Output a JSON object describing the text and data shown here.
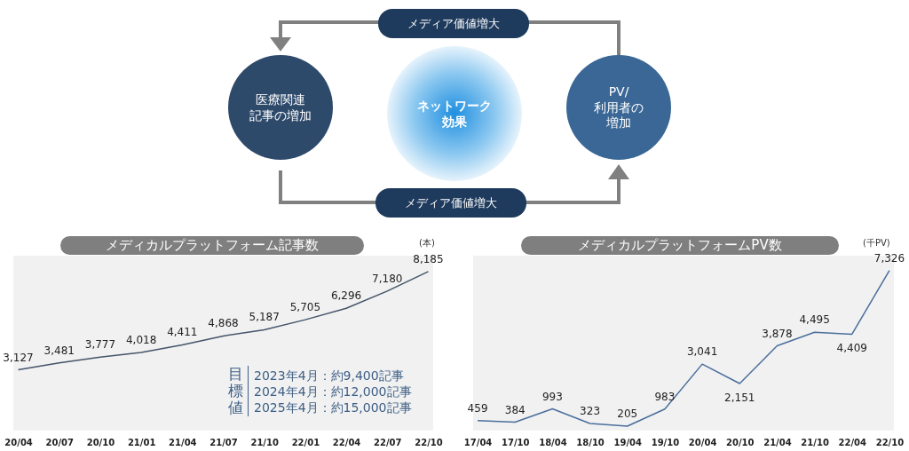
{
  "chart_data": [
    {
      "type": "other",
      "annotations": [
        "メディア価値増大",
        "医療関連記事の増加",
        "ネットワーク効果",
        "PV/利用者の増加",
        "メディア価値増大"
      ]
    },
    {
      "type": "line",
      "title": "メディカルプラットフォーム記事数",
      "ylabel": "(本)",
      "categories": [
        "20/04",
        "20/07",
        "20/10",
        "21/01",
        "21/04",
        "21/07",
        "21/10",
        "22/01",
        "22/04",
        "22/07",
        "22/10"
      ],
      "series": [
        {
          "color": "#44546a",
          "values": [
            3127,
            3481,
            3777,
            4018,
            4411,
            4868,
            5187,
            5705,
            6296,
            7180,
            8185
          ],
          "value_labels": [
            "3,127",
            "3,481",
            "3,777",
            "4,018",
            "4,411",
            "4,868",
            "5,187",
            "5,705",
            "6,296",
            "7,180",
            "8,185"
          ]
        }
      ],
      "annotations": [
        "目標値",
        "2023年4月：約9,400記事",
        "2024年4月：約12,000記事",
        "2025年4月：約15,000記事"
      ]
    },
    {
      "type": "line",
      "title": "メディカルプラットフォームPV数",
      "ylabel": "(千PV)",
      "categories": [
        "17/04",
        "17/10",
        "18/04",
        "18/10",
        "19/04",
        "19/10",
        "20/04",
        "20/10",
        "21/04",
        "21/10",
        "22/04",
        "22/10"
      ],
      "series": [
        {
          "color": "#4a6e9c",
          "values": [
            459,
            384,
            993,
            323,
            205,
            983,
            3041,
            2151,
            3878,
            4495,
            4409,
            7326
          ],
          "value_labels": [
            "459",
            "384",
            "993",
            "323",
            "205",
            "983",
            "3,041",
            "2,151",
            "3,878",
            "4,495",
            "4,409",
            "7,326"
          ]
        }
      ]
    }
  ]
}
